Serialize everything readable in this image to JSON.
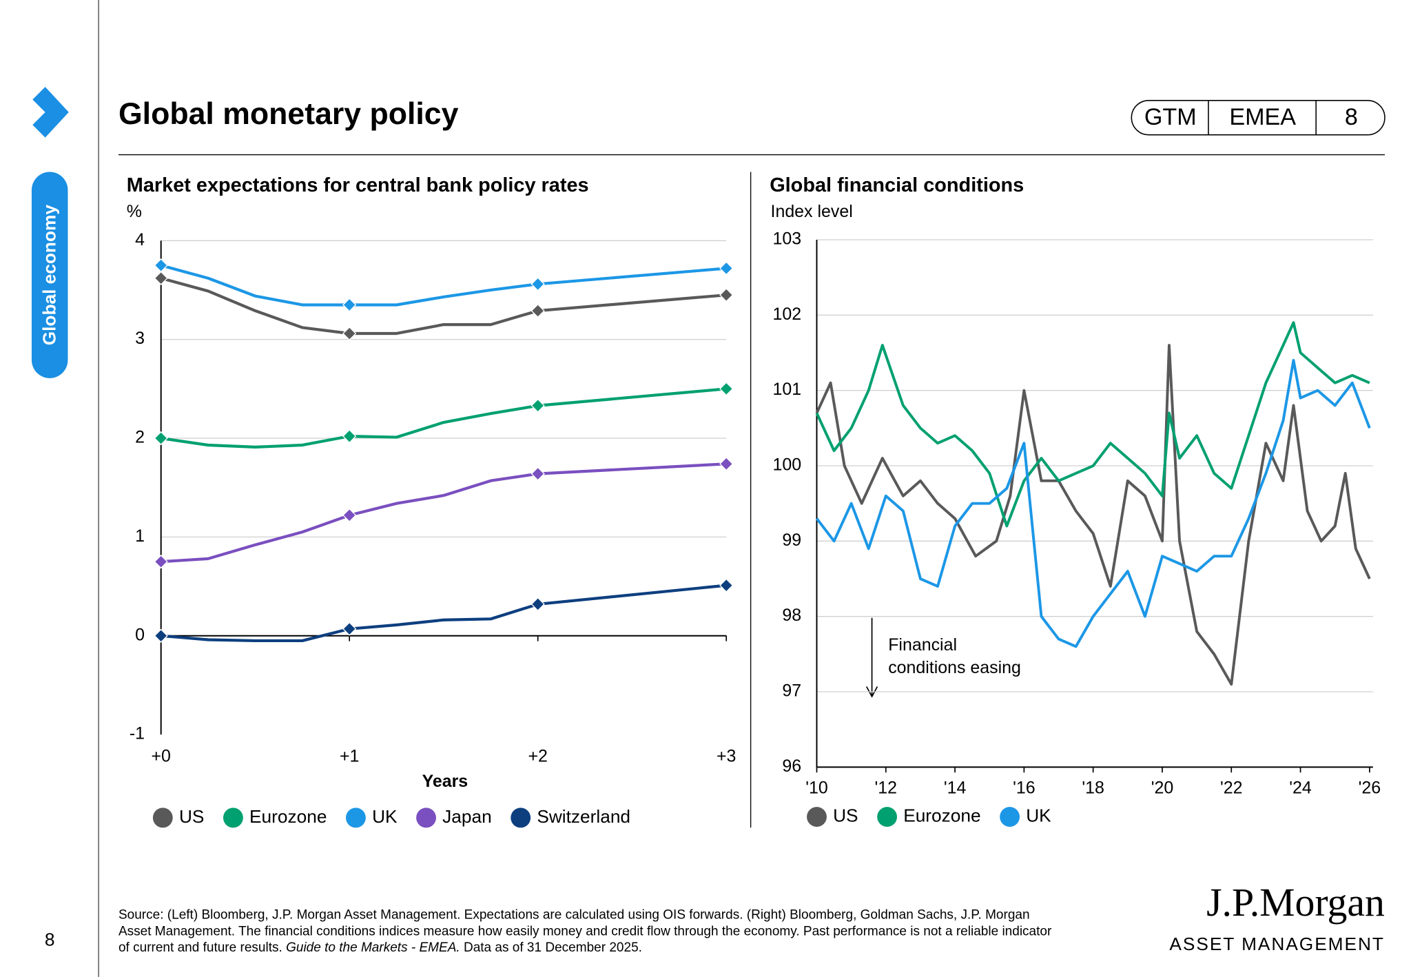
{
  "header": {
    "title": "Global monetary policy",
    "tags": [
      "GTM",
      "EMEA",
      "8"
    ]
  },
  "sidebar": {
    "section": "Global economy",
    "page_number": "8"
  },
  "chart_data": [
    {
      "type": "line",
      "title": "Market expectations for central bank policy rates",
      "y_label": "%",
      "x_label": "Years",
      "x": [
        0,
        0.25,
        0.5,
        0.75,
        1,
        1.25,
        1.5,
        1.75,
        2,
        3
      ],
      "xlim": [
        0,
        3
      ],
      "xticks": [
        {
          "value": 0,
          "label": "+0"
        },
        {
          "value": 1,
          "label": "+1"
        },
        {
          "value": 2,
          "label": "+2"
        },
        {
          "value": 3,
          "label": "+3"
        }
      ],
      "ylim": [
        -1,
        4
      ],
      "yticks": [
        -1,
        0,
        1,
        2,
        3,
        4
      ],
      "grid": true,
      "markers": true,
      "series": [
        {
          "name": "US",
          "color": "#595959",
          "values": [
            3.62,
            3.49,
            3.29,
            3.12,
            3.06,
            3.06,
            3.15,
            3.15,
            3.29,
            3.45
          ]
        },
        {
          "name": "Eurozone",
          "color": "#00a070",
          "values": [
            2.0,
            1.93,
            1.91,
            1.93,
            2.02,
            2.01,
            2.16,
            2.25,
            2.33,
            2.5
          ]
        },
        {
          "name": "UK",
          "color": "#1c97e6",
          "values": [
            3.75,
            3.62,
            3.44,
            3.35,
            3.35,
            3.35,
            3.43,
            3.5,
            3.56,
            3.72
          ]
        },
        {
          "name": "Japan",
          "color": "#7a4fbf",
          "values": [
            0.75,
            0.78,
            0.92,
            1.05,
            1.22,
            1.34,
            1.42,
            1.57,
            1.64,
            1.74
          ]
        },
        {
          "name": "Switzerland",
          "color": "#0d3f7f",
          "values": [
            0.0,
            -0.04,
            -0.05,
            -0.05,
            0.07,
            0.11,
            0.16,
            0.17,
            0.32,
            0.51
          ]
        }
      ]
    },
    {
      "type": "line",
      "title": "Global financial conditions",
      "y_label": "Index level",
      "annotation": [
        "Financial",
        "conditions easing"
      ],
      "xlim": [
        2010,
        2026.1
      ],
      "xticks": [
        {
          "value": 2010,
          "label": "'10"
        },
        {
          "value": 2012,
          "label": "'12"
        },
        {
          "value": 2014,
          "label": "'14"
        },
        {
          "value": 2016,
          "label": "'16"
        },
        {
          "value": 2018,
          "label": "'18"
        },
        {
          "value": 2020,
          "label": "'20"
        },
        {
          "value": 2022,
          "label": "'22"
        },
        {
          "value": 2024,
          "label": "'24"
        },
        {
          "value": 2026,
          "label": "'26"
        }
      ],
      "ylim": [
        96,
        103
      ],
      "yticks": [
        96,
        97,
        98,
        99,
        100,
        101,
        102,
        103
      ],
      "grid": true,
      "markers": false,
      "series": [
        {
          "name": "US",
          "color": "#595959",
          "x": [
            2010,
            2010.4,
            2010.8,
            2011.3,
            2011.9,
            2012.5,
            2013,
            2013.5,
            2014,
            2014.6,
            2015.2,
            2015.6,
            2016,
            2016.5,
            2017,
            2017.5,
            2018,
            2018.5,
            2019,
            2019.5,
            2020,
            2020.2,
            2020.5,
            2021,
            2021.5,
            2022,
            2022.5,
            2023,
            2023.5,
            2023.8,
            2024.2,
            2024.6,
            2025,
            2025.3,
            2025.6,
            2025.9,
            2026
          ],
          "values": [
            100.7,
            101.1,
            100.0,
            99.5,
            100.1,
            99.6,
            99.8,
            99.5,
            99.3,
            98.8,
            99.0,
            99.6,
            101.0,
            99.8,
            99.8,
            99.4,
            99.1,
            98.4,
            99.8,
            99.6,
            99.0,
            101.6,
            99.0,
            97.8,
            97.5,
            97.1,
            99.0,
            100.3,
            99.8,
            100.8,
            99.4,
            99.0,
            99.2,
            99.9,
            98.9,
            98.6,
            98.5
          ]
        },
        {
          "name": "Eurozone",
          "color": "#00a070",
          "x": [
            2010,
            2010.5,
            2011,
            2011.5,
            2011.9,
            2012.5,
            2013,
            2013.5,
            2014,
            2014.5,
            2015,
            2015.5,
            2016,
            2016.5,
            2017,
            2017.5,
            2018,
            2018.5,
            2019,
            2019.5,
            2020,
            2020.2,
            2020.5,
            2021,
            2021.5,
            2022,
            2022.5,
            2023,
            2023.5,
            2023.8,
            2024,
            2024.5,
            2025,
            2025.5,
            2026
          ],
          "values": [
            100.7,
            100.2,
            100.5,
            101.0,
            101.6,
            100.8,
            100.5,
            100.3,
            100.4,
            100.2,
            99.9,
            99.2,
            99.8,
            100.1,
            99.8,
            99.9,
            100.0,
            100.3,
            100.1,
            99.9,
            99.6,
            100.7,
            100.1,
            100.4,
            99.9,
            99.7,
            100.4,
            101.1,
            101.6,
            101.9,
            101.5,
            101.3,
            101.1,
            101.2,
            101.1
          ]
        },
        {
          "name": "UK",
          "color": "#1c97e6",
          "x": [
            2010,
            2010.5,
            2011,
            2011.5,
            2012,
            2012.5,
            2013,
            2013.5,
            2014,
            2014.5,
            2015,
            2015.5,
            2016,
            2016.5,
            2017,
            2017.5,
            2018,
            2018.5,
            2019,
            2019.5,
            2020,
            2020.5,
            2021,
            2021.5,
            2022,
            2022.5,
            2023,
            2023.5,
            2023.8,
            2024,
            2024.5,
            2025,
            2025.5,
            2026
          ],
          "values": [
            99.3,
            99.0,
            99.5,
            98.9,
            99.6,
            99.4,
            98.5,
            98.4,
            99.2,
            99.5,
            99.5,
            99.7,
            100.3,
            98.0,
            97.7,
            97.6,
            98.0,
            98.3,
            98.6,
            98.0,
            98.8,
            98.7,
            98.6,
            98.8,
            98.8,
            99.3,
            99.9,
            100.6,
            101.4,
            100.9,
            101.0,
            100.8,
            101.1,
            100.5
          ]
        }
      ]
    }
  ],
  "footnote": {
    "lines": [
      "Source: (Left) Bloomberg, J.P. Morgan Asset Management. Expectations are calculated using OIS forwards. (Right) Bloomberg, Goldman Sachs, J.P. Morgan",
      "Asset Management. The financial conditions indices measure how easily money and credit flow through the economy. Past performance is not a reliable indicator"
    ],
    "line3_start": "of current and future results. ",
    "line3_italic": "Guide to the Markets - EMEA.",
    "line3_end": " Data as of 31 December 2025."
  },
  "logo": {
    "name": "J.P.Morgan",
    "tagline": "ASSET MANAGEMENT"
  }
}
